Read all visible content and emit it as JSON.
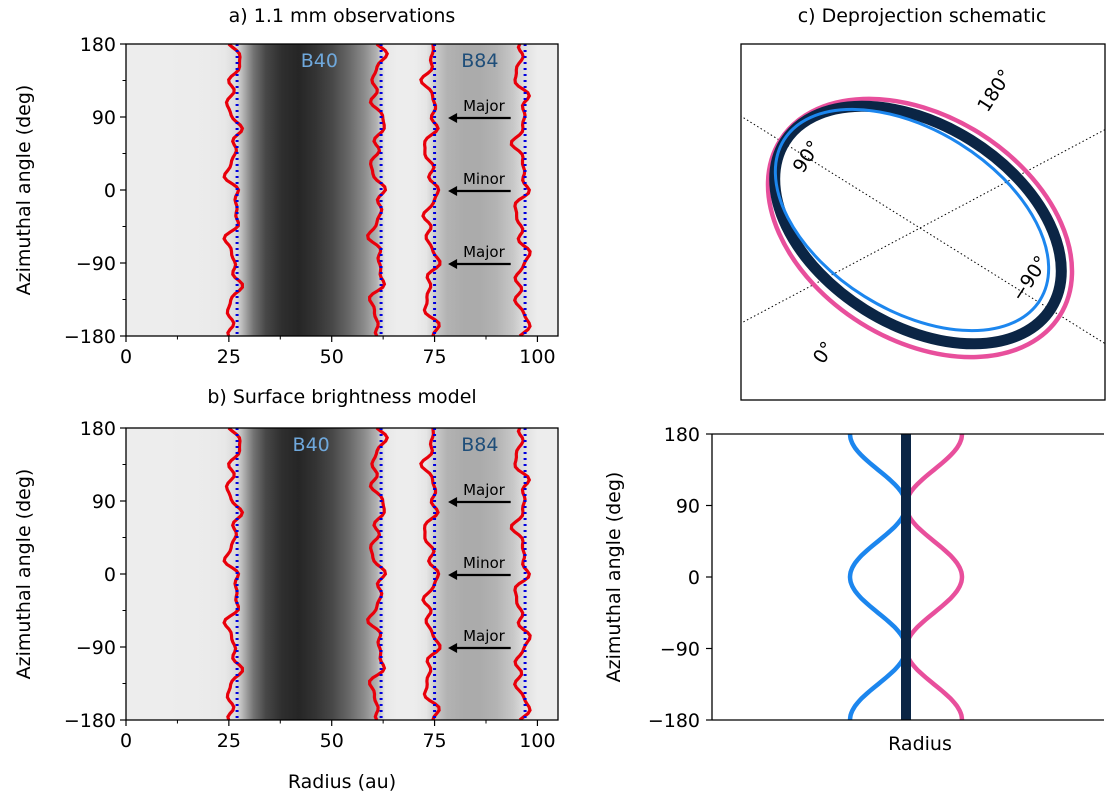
{
  "chart_data": [
    {
      "panel": "a",
      "type": "heatmap",
      "title": "a) 1.1 mm observations",
      "xlabel": "",
      "ylabel": "Azimuthal angle (deg)",
      "xlim": [
        0,
        105
      ],
      "ylim": [
        -180,
        180
      ],
      "xticks": [
        "0",
        "25",
        "50",
        "75",
        "100"
      ],
      "yticks": [
        "180",
        "90",
        "0",
        "−90",
        "−180"
      ],
      "gap_labels": [
        {
          "text": "B40",
          "x": 47,
          "y": 160,
          "color": "#6fa8dc"
        },
        {
          "text": "B84",
          "x": 86,
          "y": 160,
          "color": "#1f4e79"
        }
      ],
      "annotations": [
        {
          "text": "Major",
          "x": 87,
          "y": 90
        },
        {
          "text": "Minor",
          "x": 87,
          "y": 0
        },
        {
          "text": "Major",
          "x": 87,
          "y": -90
        }
      ],
      "fitted_gap_edges_au": [
        27,
        62,
        75,
        97
      ],
      "measured_edges_color": "#e8000b",
      "fitted_edges_color": "#0000dd",
      "brightness_profile": {
        "radius_au": [
          0,
          10,
          20,
          24,
          27,
          29,
          31,
          34,
          38,
          42,
          46,
          50,
          54,
          58,
          61,
          62,
          63,
          66,
          70,
          73,
          75,
          78,
          82,
          86,
          90,
          94,
          97,
          100,
          105
        ],
        "intensity": [
          0.07,
          0.07,
          0.08,
          0.09,
          0.15,
          0.35,
          0.55,
          0.72,
          0.82,
          0.85,
          0.8,
          0.72,
          0.6,
          0.45,
          0.3,
          0.18,
          0.09,
          0.07,
          0.07,
          0.1,
          0.2,
          0.3,
          0.33,
          0.33,
          0.3,
          0.22,
          0.12,
          0.07,
          0.07
        ]
      }
    },
    {
      "panel": "b",
      "type": "heatmap",
      "title": "b) Surface brightness model",
      "xlabel": "Radius (au)",
      "ylabel": "Azimuthal angle (deg)",
      "xlim": [
        0,
        105
      ],
      "ylim": [
        -180,
        180
      ],
      "xticks": [
        "0",
        "25",
        "50",
        "75",
        "100"
      ],
      "yticks": [
        "180",
        "90",
        "0",
        "−90",
        "−180"
      ],
      "gap_labels": [
        {
          "text": "B40",
          "x": 45,
          "y": 160,
          "color": "#6fa8dc"
        },
        {
          "text": "B84",
          "x": 86,
          "y": 160,
          "color": "#1f4e79"
        }
      ],
      "annotations": [
        {
          "text": "Major",
          "x": 87,
          "y": 90
        },
        {
          "text": "Minor",
          "x": 87,
          "y": 0
        },
        {
          "text": "Major",
          "x": 87,
          "y": -90
        }
      ],
      "fitted_gap_edges_au": [
        27,
        62,
        75,
        97
      ],
      "measured_edges_color": "#e8000b",
      "fitted_edges_color": "#0000dd"
    },
    {
      "panel": "c",
      "type": "diagram",
      "title": "c) Deprojection schematic",
      "angle_labels": [
        "180°",
        "90°",
        "0°",
        "−90°"
      ],
      "ellipses": [
        {
          "name": "pink",
          "color": "#e84f9c"
        },
        {
          "name": "navy",
          "color": "#0b2545"
        },
        {
          "name": "blue",
          "color": "#1c86ee"
        }
      ]
    },
    {
      "panel": "d",
      "type": "line",
      "xlabel": "Radius",
      "ylabel": "Azimuthal angle (deg)",
      "ylim": [
        -180,
        180
      ],
      "yticks": [
        "180",
        "90",
        "0",
        "−90",
        "−180"
      ],
      "series": [
        {
          "color": "#1c86ee",
          "shape": "cosine",
          "extremum_at_0": -1
        },
        {
          "color": "#e84f9c",
          "shape": "cosine",
          "extremum_at_0": 1
        },
        {
          "color": "#0b2545",
          "shape": "straight",
          "extremum_at_0": 0
        }
      ]
    }
  ]
}
